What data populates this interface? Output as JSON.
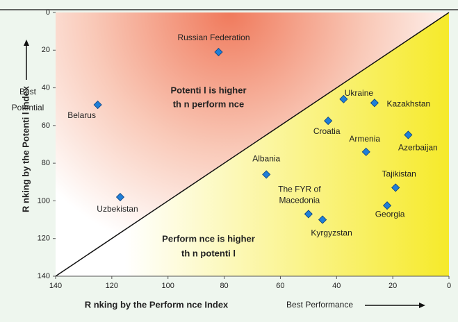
{
  "chart_data": {
    "type": "scatter",
    "x_label": "R nking by the Perform nce Index",
    "y_label": "R nking by the Potenti l Index",
    "x_note": "Best Performance",
    "y_note": [
      "Best",
      "Potential"
    ],
    "annotations": [
      [
        "Potenti l is higher",
        "th n perform nce"
      ],
      [
        "Perform nce is higher",
        "th n potenti l"
      ]
    ],
    "xlim": [
      140,
      0
    ],
    "ylim": [
      140,
      0
    ],
    "xticks": [
      140,
      120,
      100,
      80,
      60,
      40,
      20,
      0
    ],
    "yticks": [
      0,
      20,
      40,
      60,
      80,
      100,
      120,
      140
    ],
    "color": "#1f7fd8",
    "points": [
      {
        "name": "Russian Federation",
        "x": 82,
        "y": 21
      },
      {
        "name": "Belarus",
        "x": 125,
        "y": 49
      },
      {
        "name": "Uzbekistan",
        "x": 117,
        "y": 98
      },
      {
        "name": "Ukraine",
        "x": 37.5,
        "y": 46
      },
      {
        "name": "Kazakhstan",
        "x": 26.5,
        "y": 48
      },
      {
        "name": "Croatia",
        "x": 43,
        "y": 57.5
      },
      {
        "name": "Armenia",
        "x": 29.5,
        "y": 74
      },
      {
        "name": "Azerbaijan",
        "x": 14.5,
        "y": 65
      },
      {
        "name": "Albania",
        "x": 65,
        "y": 86
      },
      {
        "name": "Tajikistan",
        "x": 19,
        "y": 93
      },
      {
        "name": "Georgia",
        "x": 22,
        "y": 102.5
      },
      {
        "name": [
          "The FYR of",
          "Macedonia"
        ],
        "x": 50,
        "y": 107
      },
      {
        "name": "Kyrgyzstan",
        "x": 45,
        "y": 110
      }
    ]
  }
}
